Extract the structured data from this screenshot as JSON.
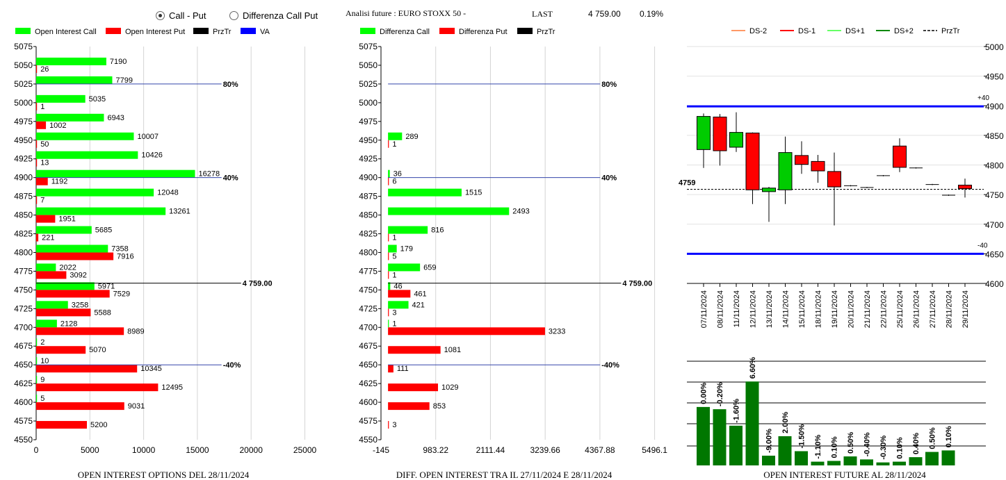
{
  "controls": {
    "mode_options": [
      {
        "label": "Call - Put",
        "selected": true
      },
      {
        "label": "Differenza Call Put",
        "selected": false
      }
    ],
    "future_title": "Analisi future : EURO STOXX 50 -",
    "last_label": "LAST",
    "last_value": "4 759.00",
    "last_change": "0.19%"
  },
  "colors": {
    "call": "#00ff00",
    "put": "#ff0000",
    "przTr": "#000000",
    "va": "#0000ff",
    "level_line": "#3344aa",
    "ds_minus2": "#ff9966",
    "ds_minus1": "#ff0000",
    "ds_plus1": "#66ff66",
    "ds_plus2": "#008800",
    "candle_up": "#00cc00",
    "candle_down": "#ff0000",
    "oi_bar": "#007700"
  },
  "chart_data": [
    {
      "type": "bar",
      "orientation": "horizontal",
      "title": "OPEN INTEREST OPTIONS DEL 28/11/2024",
      "legend": [
        "Open Interest Call",
        "Open Interest Put",
        "PrzTr",
        "VA"
      ],
      "categories": [
        "5075",
        "5050",
        "5025",
        "5000",
        "4975",
        "4950",
        "4925",
        "4900",
        "4875",
        "4850",
        "4825",
        "4800",
        "4775",
        "4750",
        "4725",
        "4700",
        "4675",
        "4650",
        "4625",
        "4600",
        "4575",
        "4550"
      ],
      "series": [
        {
          "name": "Open Interest Call",
          "values": [
            null,
            7190,
            7799,
            5035,
            6943,
            10007,
            10426,
            16278,
            12048,
            13261,
            5685,
            7358,
            2022,
            5971,
            3258,
            2128,
            2,
            10,
            9,
            5,
            null,
            null
          ]
        },
        {
          "name": "Open Interest Put",
          "values": [
            null,
            26,
            null,
            1,
            1002,
            50,
            13,
            1192,
            7,
            1951,
            221,
            7916,
            3092,
            7529,
            5588,
            8989,
            5070,
            10345,
            12495,
            9031,
            5200,
            null
          ]
        }
      ],
      "xlim": [
        0,
        27500
      ],
      "xticks": [
        "0",
        "5000",
        "10000",
        "15000",
        "20000",
        "25000"
      ],
      "levels": [
        {
          "strike": 5025,
          "label": "80%",
          "end": 19000
        },
        {
          "strike": 4900,
          "label": "40%",
          "end": 19000
        },
        {
          "strike": 4759,
          "label": "4 759.00",
          "end": 21000,
          "type": "price"
        },
        {
          "strike": 4650,
          "label": "-40%",
          "end": 19000
        }
      ]
    },
    {
      "type": "bar",
      "orientation": "horizontal",
      "title": "DIFF. OPEN INTEREST TRA IL 27/11/2024 E 28/11/2024",
      "legend": [
        "Differenza Call",
        "Differenza Put",
        "PrzTr"
      ],
      "categories": [
        "5075",
        "5050",
        "5025",
        "5000",
        "4975",
        "4950",
        "4925",
        "4900",
        "4875",
        "4850",
        "4825",
        "4800",
        "4775",
        "4750",
        "4725",
        "4700",
        "4675",
        "4650",
        "4625",
        "4600",
        "4575",
        "4550"
      ],
      "series": [
        {
          "name": "Differenza Call",
          "values": [
            null,
            null,
            null,
            null,
            null,
            289,
            null,
            36,
            1515,
            2493,
            816,
            179,
            659,
            46,
            421,
            1,
            null,
            null,
            null,
            null,
            null,
            null
          ]
        },
        {
          "name": "Differenza Put",
          "values": [
            null,
            null,
            null,
            null,
            null,
            1,
            null,
            6,
            null,
            null,
            1,
            5,
            1,
            461,
            3,
            3233,
            1081,
            111,
            1029,
            853,
            3,
            null
          ]
        }
      ],
      "xlim": [
        -145,
        5496.1
      ],
      "xticks": [
        "-145",
        "983.22",
        "2111.44",
        "3239.66",
        "4367.88",
        "5496.1"
      ],
      "levels": [
        {
          "strike": 5025,
          "label": "80%",
          "end": 4367.88
        },
        {
          "strike": 4900,
          "label": "40%",
          "end": 4367.88
        },
        {
          "strike": 4759,
          "label": "4 759.00",
          "end": 4800,
          "type": "price"
        },
        {
          "strike": 4650,
          "label": "-40%",
          "end": 4367.88
        }
      ]
    },
    {
      "type": "candlestick",
      "legend": [
        "DS-2",
        "DS-1",
        "DS+1",
        "DS+2",
        "PrzTr"
      ],
      "categories": [
        "07/11/2024",
        "08/11/2024",
        "11/11/2024",
        "12/11/2024",
        "13/11/2024",
        "14/11/2024",
        "15/11/2024",
        "18/11/2024",
        "19/11/2024",
        "20/11/2024",
        "21/11/2024",
        "22/11/2024",
        "25/11/2024",
        "26/11/2024",
        "27/11/2024",
        "28/11/2024",
        "29/11/2024"
      ],
      "candles": [
        {
          "open": 4826,
          "close": 4882,
          "high": 4887,
          "low": 4795
        },
        {
          "open": 4881,
          "close": 4824,
          "high": 4886,
          "low": 4799
        },
        {
          "open": 4830,
          "close": 4855,
          "high": 4889,
          "low": 4822
        },
        {
          "open": 4854,
          "close": 4758,
          "high": 4855,
          "low": 4734
        },
        {
          "open": 4755,
          "close": 4761,
          "high": 4763,
          "low": 4704
        },
        {
          "open": 4758,
          "close": 4821,
          "high": 4848,
          "low": 4734
        },
        {
          "open": 4816,
          "close": 4801,
          "high": 4840,
          "low": 4785
        },
        {
          "open": 4806,
          "close": 4790,
          "high": 4817,
          "low": 4770
        },
        {
          "open": 4789,
          "close": 4763,
          "high": 4821,
          "low": 4698
        },
        {
          "open": 4765,
          "close": 4765,
          "high": 4766,
          "low": 4764
        },
        {
          "open": 4762,
          "close": 4762,
          "high": 4763,
          "low": 4761
        },
        {
          "open": 4782,
          "close": 4782,
          "high": 4783,
          "low": 4781
        },
        {
          "open": 4832,
          "close": 4796,
          "high": 4845,
          "low": 4788
        },
        {
          "open": 4795,
          "close": 4795,
          "high": 4796,
          "low": 4794
        },
        {
          "open": 4767,
          "close": 4767,
          "high": 4768,
          "low": 4766
        },
        {
          "open": 4749,
          "close": 4749,
          "high": 4750,
          "low": 4748
        },
        {
          "open": 4766,
          "close": 4760,
          "high": 4777,
          "low": 4745
        }
      ],
      "ylim": [
        4600,
        5000
      ],
      "yticks": [
        4600,
        4650,
        4700,
        4750,
        4800,
        4850,
        4900,
        4950,
        5000
      ],
      "bands": [
        {
          "name": "+40",
          "value": 4899
        },
        {
          "name": "-40",
          "value": 4650
        }
      ],
      "przTr": {
        "value": 4759,
        "label": "4759"
      },
      "grid": true
    },
    {
      "type": "bar",
      "title": "OPEN INTEREST FUTURE AL 28/11/2024",
      "categories": [
        "07/11/2024",
        "08/11/2024",
        "11/11/2024",
        "12/11/2024",
        "13/11/2024",
        "14/11/2024",
        "15/11/2024",
        "18/11/2024",
        "19/11/2024",
        "20/11/2024",
        "21/11/2024",
        "22/11/2024",
        "25/11/2024",
        "26/11/2024",
        "27/11/2024",
        "28/11/2024",
        "29/11/2024"
      ],
      "values": [
        78,
        75,
        53,
        112,
        13,
        39,
        19,
        5,
        6,
        12,
        8,
        4,
        5,
        11,
        18,
        20,
        null
      ],
      "bar_labels": [
        "0.00%",
        "-0.20%",
        "-1.60%",
        "6.60%",
        "-9.00%",
        "2.00%",
        "-1.50%",
        "-1.10%",
        "0.10%",
        "0.50%",
        "-0.40%",
        "-0.30%",
        "0.10%",
        "0.40%",
        "0.50%",
        "0.10%",
        ""
      ],
      "ylim": [
        0,
        140
      ],
      "grid": true
    }
  ]
}
